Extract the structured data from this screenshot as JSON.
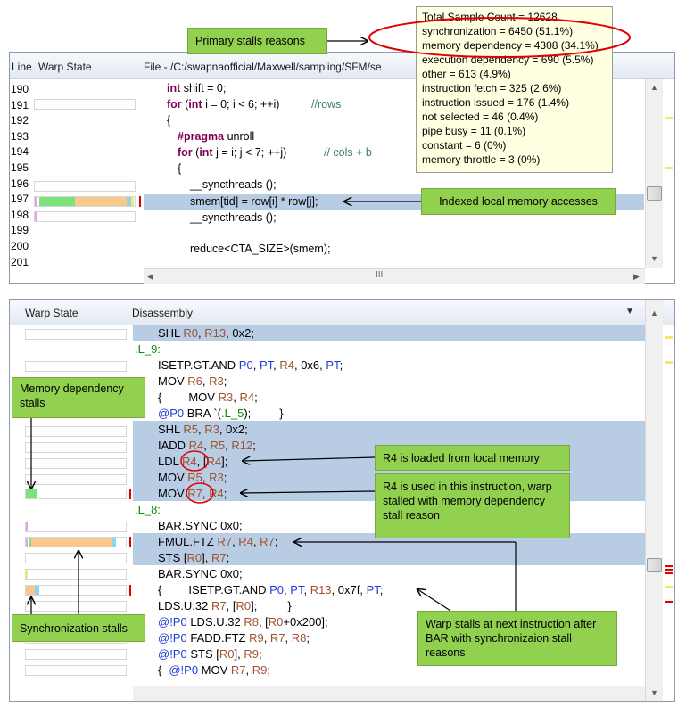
{
  "callouts": {
    "primary_stalls": "Primary stalls reasons",
    "indexed_local": "Indexed local memory accesses",
    "memory_dependency": "Memory dependency stalls",
    "r4_loaded": "R4 is loaded from local memory",
    "r4_used": "R4 is used in this instruction, warp stalled with memory dependency stall reason",
    "sync_stalls": "Synchronization stalls",
    "next_instruction": "Warp stalls at next instruction after BAR with synchronizaion stall reasons"
  },
  "tooltip": {
    "lines": [
      "Total Sample Count = 12628",
      "synchronization = 6450 (51.1%)",
      "memory dependency = 4308 (34.1%)",
      "execution dependency = 690 (5.5%)",
      "other = 613 (4.9%)",
      "instruction fetch = 325 (2.6%)",
      "instruction issued = 176 (1.4%)",
      "not selected = 46 (0.4%)",
      "pipe busy = 11 (0.1%)",
      "constant = 6 (0%)",
      "memory throttle = 3 (0%)"
    ]
  },
  "source_view": {
    "col_line": "Line",
    "col_warp": "Warp State",
    "col_file": "File - /C:/swapnaofficial/Maxwell/sampling/SFM/se",
    "line_numbers": [
      "190",
      "191",
      "192",
      "193",
      "194",
      "195",
      "196",
      "197",
      "198",
      "199",
      "200",
      "201"
    ],
    "code": {
      "l190_kw": "int",
      "l190_rest": " shift = 0;",
      "l191_for": "for",
      "l191_paren": " (",
      "l191_int": "int",
      "l191_rest": " i = 0; i < 6; ++i)",
      "l191_cmt": "//rows",
      "l192": "{",
      "l193": "#pragma",
      "l193_rest": " unroll",
      "l194_for": "for",
      "l194_paren": " (",
      "l194_int": "int",
      "l194_rest": " j = i; j < 7; ++j)",
      "l194_cmt": "// cols + b",
      "l195": "{",
      "l196": "__syncthreads ();",
      "l197": "smem[tid] = row[i] * row[j];",
      "l198": "__syncthreads ();",
      "l200": "reduce<CTA_SIZE>(smem);"
    }
  },
  "disassembly_view": {
    "col_warp": "Warp State",
    "col_disasm": "Disassembly",
    "lines": {
      "a1_op": "SHL ",
      "a1_r0": "R0",
      "a1_c": ", ",
      "a1_r13": "R13",
      "a1_t": ", 0x2;",
      "a2": ".L_9:",
      "a3_op": "ISETP.GT.AND ",
      "a3_p0": "P0",
      "a3_c1": ", ",
      "a3_pt": "PT",
      "a3_c2": ", ",
      "a3_r4": "R4",
      "a3_c3": ", 0x6, ",
      "a3_pt2": "PT",
      "a3_t": ";",
      "a4_op": "MOV ",
      "a4_r6": "R6",
      "a4_c": ", ",
      "a4_r3": "R3",
      "a4_t": ";",
      "a5_b": "{",
      "a5_op": "MOV ",
      "a5_r3": "R3",
      "a5_c": ", ",
      "a5_r4": "R4",
      "a5_t": ";",
      "a6_p": "@P0",
      "a6_op": " BRA `(",
      "a6_lbl": ".L_5",
      "a6_t": ");",
      "a6_b": "}",
      "a7_op": "SHL ",
      "a7_r5": "R5",
      "a7_c": ", ",
      "a7_r3": "R3",
      "a7_t": ", 0x2;",
      "a8_op": "IADD ",
      "a8_r4": "R4",
      "a8_c1": ", ",
      "a8_r5": "R5",
      "a8_c2": ", ",
      "a8_r12": "R12",
      "a8_t": ";",
      "a9_op": "LDL ",
      "a9_r4": "R4",
      "a9_c": ", [",
      "a9_r4b": "R4",
      "a9_t": "];",
      "a10_op": "MOV ",
      "a10_r5": "R5",
      "a10_c": ", ",
      "a10_r3": "R3",
      "a10_t": ";",
      "a11_op": "MOV ",
      "a11_r7": "R7",
      "a11_c": ", ",
      "a11_r4": "R4",
      "a11_t": ";",
      "a12": ".L_8:",
      "a13": "BAR.SYNC 0x0;",
      "a14_op": "FMUL.FTZ ",
      "a14_r7": "R7",
      "a14_c1": ", ",
      "a14_r4": "R4",
      "a14_c2": ", ",
      "a14_r7b": "R7",
      "a14_t": ";",
      "a15_op": "STS [",
      "a15_r0": "R0",
      "a15_c": "], ",
      "a15_r7": "R7",
      "a15_t": ";",
      "a16": "BAR.SYNC 0x0;",
      "a17_b": "{",
      "a17_op": "ISETP.GT.AND ",
      "a17_p0": "P0",
      "a17_c1": ", ",
      "a17_pt": "PT",
      "a17_c2": ", ",
      "a17_r13": "R13",
      "a17_c3": ", 0x7f, ",
      "a17_pt2": "PT",
      "a17_t": ";",
      "a18_op": "LDS.U.32 ",
      "a18_r7": "R7",
      "a18_c": ", [",
      "a18_r0": "R0",
      "a18_t": "];",
      "a18_b": "}",
      "a19_p": "@!P0",
      "a19_op": " LDS.U.32 ",
      "a19_r8": "R8",
      "a19_c": ", [",
      "a19_r0": "R0",
      "a19_t": "+0x200];",
      "a20_p": "@!P0",
      "a20_op": " FADD.FTZ ",
      "a20_r9": "R9",
      "a20_c1": ", ",
      "a20_r7": "R7",
      "a20_c2": ", ",
      "a20_r8": "R8",
      "a20_t": ";",
      "a21_p": "@!P0",
      "a21_op": " STS [",
      "a21_r0": "R0",
      "a21_c": "], ",
      "a21_r9": "R9",
      "a21_t": ";",
      "a22_b": "{",
      "a22_p": "@!P0",
      "a22_op": " MOV ",
      "a22_r7": "R7",
      "a22_c": ", ",
      "a22_r9": "R9",
      "a22_t": ";"
    }
  },
  "scroll": {
    "h_label": "III"
  },
  "colors": {
    "callout_green": "#92d050",
    "highlight": "#b8cde4",
    "tooltip_bg": "#ffffe1",
    "stall_green": "#7be37b",
    "stall_orange": "#f9c88c",
    "stall_cyan": "#8fd3f0",
    "stall_pink": "#e6a0e6",
    "stall_red": "#e00000",
    "marker_yellow": "#f2e86a"
  }
}
